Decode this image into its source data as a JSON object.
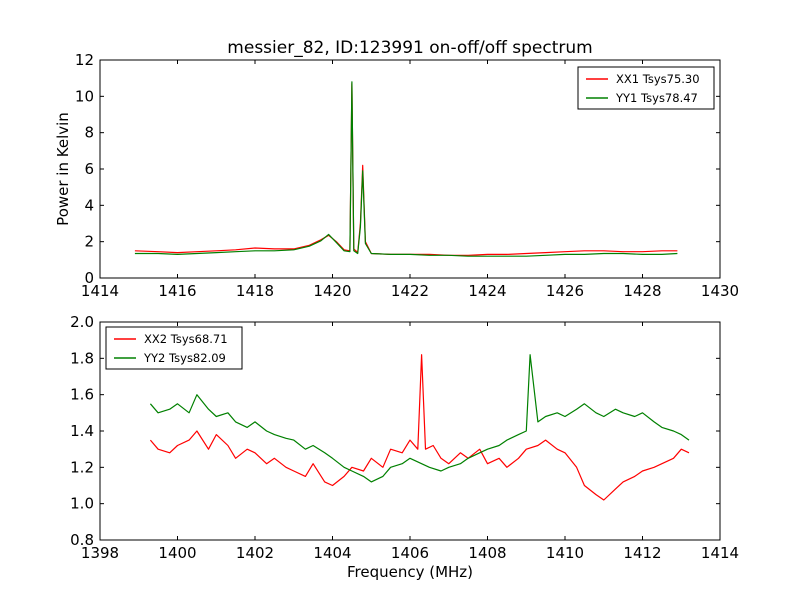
{
  "figure_title": "messier_82, ID:123991 on-off/off spectrum",
  "colors": {
    "xx": "#ff0000",
    "yy": "#008000",
    "axis": "#000000",
    "background": "#ffffff"
  },
  "chart_data": [
    {
      "type": "line",
      "title": "messier_82, ID:123991 on-off/off spectrum",
      "xlabel": "",
      "ylabel": "Power in Kelvin",
      "xlim": [
        1414,
        1430
      ],
      "ylim": [
        0,
        12
      ],
      "xticks": [
        "1414",
        "1416",
        "1418",
        "1420",
        "1422",
        "1424",
        "1426",
        "1428",
        "1430"
      ],
      "yticks": [
        "0",
        "2",
        "4",
        "6",
        "8",
        "10",
        "12"
      ],
      "grid": false,
      "legend_position": "top-right",
      "series": [
        {
          "name": "XX1 Tsys75.30",
          "color": "#ff0000",
          "x": [
            1414.9,
            1415.5,
            1416.0,
            1416.5,
            1417.0,
            1417.5,
            1418.0,
            1418.5,
            1419.0,
            1419.4,
            1419.7,
            1419.9,
            1420.1,
            1420.3,
            1420.45,
            1420.5,
            1420.55,
            1420.65,
            1420.72,
            1420.78,
            1420.85,
            1421.0,
            1421.5,
            1422.0,
            1422.5,
            1423.0,
            1423.5,
            1424.0,
            1424.5,
            1425.0,
            1425.5,
            1426.0,
            1426.5,
            1427.0,
            1427.5,
            1428.0,
            1428.5,
            1428.9
          ],
          "y": [
            1.5,
            1.45,
            1.4,
            1.45,
            1.5,
            1.55,
            1.65,
            1.6,
            1.6,
            1.8,
            2.1,
            2.35,
            2.0,
            1.55,
            1.5,
            10.7,
            1.6,
            1.4,
            3.0,
            6.2,
            2.0,
            1.35,
            1.3,
            1.3,
            1.3,
            1.25,
            1.25,
            1.3,
            1.3,
            1.35,
            1.4,
            1.45,
            1.5,
            1.5,
            1.45,
            1.45,
            1.5,
            1.5
          ]
        },
        {
          "name": "YY1 Tsys78.47",
          "color": "#008000",
          "x": [
            1414.9,
            1415.5,
            1416.0,
            1416.5,
            1417.0,
            1417.5,
            1418.0,
            1418.5,
            1419.0,
            1419.4,
            1419.7,
            1419.9,
            1420.1,
            1420.3,
            1420.45,
            1420.5,
            1420.55,
            1420.65,
            1420.72,
            1420.78,
            1420.85,
            1421.0,
            1421.5,
            1422.0,
            1422.5,
            1423.0,
            1423.5,
            1424.0,
            1424.5,
            1425.0,
            1425.5,
            1426.0,
            1426.5,
            1427.0,
            1427.5,
            1428.0,
            1428.5,
            1428.9
          ],
          "y": [
            1.35,
            1.35,
            1.3,
            1.35,
            1.4,
            1.45,
            1.5,
            1.5,
            1.55,
            1.75,
            2.05,
            2.4,
            1.95,
            1.5,
            1.45,
            10.8,
            1.5,
            1.35,
            2.8,
            5.9,
            1.9,
            1.35,
            1.3,
            1.3,
            1.25,
            1.25,
            1.2,
            1.2,
            1.2,
            1.2,
            1.25,
            1.3,
            1.3,
            1.35,
            1.35,
            1.3,
            1.3,
            1.35
          ]
        }
      ]
    },
    {
      "type": "line",
      "title": "",
      "xlabel": "Frequency (MHz)",
      "ylabel": "",
      "xlim": [
        1398,
        1414
      ],
      "ylim": [
        0.8,
        2.0
      ],
      "xticks": [
        "1398",
        "1400",
        "1402",
        "1404",
        "1406",
        "1408",
        "1410",
        "1412",
        "1414"
      ],
      "yticks": [
        "0.8",
        "1.0",
        "1.2",
        "1.4",
        "1.6",
        "1.8",
        "2.0"
      ],
      "grid": false,
      "legend_position": "top-left",
      "series": [
        {
          "name": "XX2 Tsys68.71",
          "color": "#ff0000",
          "x": [
            1399.3,
            1399.5,
            1399.8,
            1400.0,
            1400.3,
            1400.5,
            1400.8,
            1401.0,
            1401.3,
            1401.5,
            1401.8,
            1402.0,
            1402.3,
            1402.5,
            1402.8,
            1403.0,
            1403.3,
            1403.5,
            1403.8,
            1404.0,
            1404.3,
            1404.5,
            1404.8,
            1405.0,
            1405.3,
            1405.5,
            1405.8,
            1406.0,
            1406.2,
            1406.3,
            1406.4,
            1406.6,
            1406.8,
            1407.0,
            1407.3,
            1407.5,
            1407.8,
            1408.0,
            1408.3,
            1408.5,
            1408.8,
            1409.0,
            1409.3,
            1409.5,
            1409.8,
            1410.0,
            1410.3,
            1410.5,
            1410.8,
            1411.0,
            1411.3,
            1411.5,
            1411.8,
            1412.0,
            1412.3,
            1412.5,
            1412.8,
            1413.0,
            1413.2
          ],
          "y": [
            1.35,
            1.3,
            1.28,
            1.32,
            1.35,
            1.4,
            1.3,
            1.38,
            1.32,
            1.25,
            1.3,
            1.28,
            1.22,
            1.25,
            1.2,
            1.18,
            1.15,
            1.22,
            1.12,
            1.1,
            1.15,
            1.2,
            1.18,
            1.25,
            1.2,
            1.3,
            1.28,
            1.35,
            1.3,
            1.82,
            1.3,
            1.32,
            1.25,
            1.22,
            1.28,
            1.25,
            1.3,
            1.22,
            1.25,
            1.2,
            1.25,
            1.3,
            1.32,
            1.35,
            1.3,
            1.28,
            1.2,
            1.1,
            1.05,
            1.02,
            1.08,
            1.12,
            1.15,
            1.18,
            1.2,
            1.22,
            1.25,
            1.3,
            1.28
          ]
        },
        {
          "name": "YY2 Tsys82.09",
          "color": "#008000",
          "x": [
            1399.3,
            1399.5,
            1399.8,
            1400.0,
            1400.3,
            1400.5,
            1400.8,
            1401.0,
            1401.3,
            1401.5,
            1401.8,
            1402.0,
            1402.3,
            1402.5,
            1402.8,
            1403.0,
            1403.3,
            1403.5,
            1403.8,
            1404.0,
            1404.3,
            1404.5,
            1404.8,
            1405.0,
            1405.3,
            1405.5,
            1405.8,
            1406.0,
            1406.3,
            1406.5,
            1406.8,
            1407.0,
            1407.3,
            1407.5,
            1407.8,
            1408.0,
            1408.3,
            1408.5,
            1408.8,
            1409.0,
            1409.1,
            1409.3,
            1409.5,
            1409.8,
            1410.0,
            1410.3,
            1410.5,
            1410.8,
            1411.0,
            1411.3,
            1411.5,
            1411.8,
            1412.0,
            1412.3,
            1412.5,
            1412.8,
            1413.0,
            1413.2
          ],
          "y": [
            1.55,
            1.5,
            1.52,
            1.55,
            1.5,
            1.6,
            1.52,
            1.48,
            1.5,
            1.45,
            1.42,
            1.45,
            1.4,
            1.38,
            1.36,
            1.35,
            1.3,
            1.32,
            1.28,
            1.25,
            1.2,
            1.18,
            1.15,
            1.12,
            1.15,
            1.2,
            1.22,
            1.25,
            1.22,
            1.2,
            1.18,
            1.2,
            1.22,
            1.25,
            1.28,
            1.3,
            1.32,
            1.35,
            1.38,
            1.4,
            1.82,
            1.45,
            1.48,
            1.5,
            1.48,
            1.52,
            1.55,
            1.5,
            1.48,
            1.52,
            1.5,
            1.48,
            1.5,
            1.45,
            1.42,
            1.4,
            1.38,
            1.35
          ]
        }
      ]
    }
  ]
}
